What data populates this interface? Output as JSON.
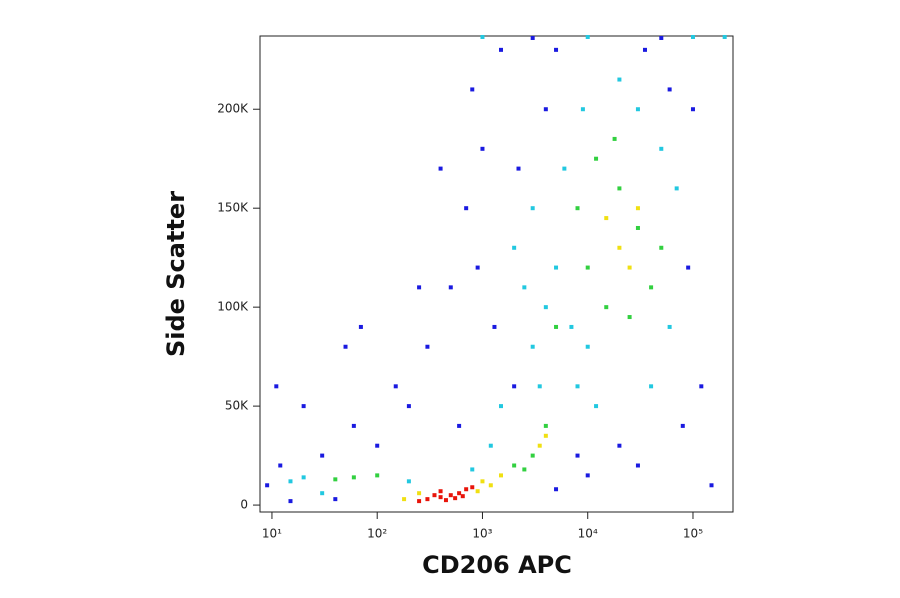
{
  "chart_data": {
    "type": "scatter",
    "x_label": "CD206 APC",
    "y_label": "Side Scatter",
    "xscale": "log",
    "xlim": [
      7.7,
      240000
    ],
    "ylim": [
      -3500,
      237000
    ],
    "xticks": [
      {
        "value": 10,
        "label": "10¹"
      },
      {
        "value": 100,
        "label": "10²"
      },
      {
        "value": 1000,
        "label": "10³"
      },
      {
        "value": 10000,
        "label": "10⁴"
      },
      {
        "value": 100000,
        "label": "10⁵"
      }
    ],
    "yticks": [
      0,
      {
        "value": 50000,
        "label": "50K"
      },
      {
        "value": 100000,
        "label": "100K"
      },
      {
        "value": 150000,
        "label": "150K"
      },
      {
        "value": 200000,
        "label": "200K"
      }
    ],
    "series": [
      {
        "color": "#1a1ae0",
        "x": [
          100,
          200,
          300,
          500,
          700,
          1000,
          800,
          400,
          150,
          60,
          30,
          12,
          9,
          20,
          50,
          1500,
          3000,
          50000,
          100000,
          120000,
          80000,
          30000,
          10000,
          5000,
          2000,
          600,
          1300,
          2200,
          4000,
          90000,
          20000,
          8000,
          150000,
          40,
          15,
          900,
          250,
          70,
          11,
          5000,
          60000,
          35000
        ],
        "y": [
          30000,
          50000,
          80000,
          110000,
          150000,
          180000,
          210000,
          170000,
          60000,
          40000,
          25000,
          20000,
          10000,
          50000,
          80000,
          230000,
          236000,
          236000,
          200000,
          60000,
          40000,
          20000,
          15000,
          8000,
          60000,
          40000,
          90000,
          170000,
          200000,
          120000,
          30000,
          25000,
          10000,
          3000,
          2000,
          120000,
          110000,
          90000,
          60000,
          230000,
          210000,
          230000
        ]
      },
      {
        "color": "#22c8e0",
        "x": [
          1500,
          3000,
          5000,
          6000,
          9000,
          2000,
          3000,
          60000,
          70000,
          50000,
          30000,
          20000,
          8000,
          1200,
          800,
          200,
          20,
          30,
          15,
          10000,
          40000,
          4000,
          2500,
          7000,
          12000,
          3500,
          1000,
          10000,
          100000,
          200000
        ],
        "y": [
          50000,
          80000,
          120000,
          170000,
          200000,
          130000,
          150000,
          90000,
          160000,
          180000,
          200000,
          215000,
          60000,
          30000,
          18000,
          12000,
          14000,
          6000,
          12000,
          80000,
          60000,
          100000,
          110000,
          90000,
          50000,
          60000,
          236500,
          236500,
          236500,
          236500
        ]
      },
      {
        "color": "#32d040",
        "x": [
          3000,
          4000,
          2000,
          15000,
          10000,
          30000,
          20000,
          8000,
          40000,
          12000,
          50000,
          100,
          60,
          40,
          2500,
          5000,
          25000,
          18000
        ],
        "y": [
          25000,
          40000,
          20000,
          100000,
          120000,
          140000,
          160000,
          150000,
          110000,
          175000,
          130000,
          15000,
          14000,
          13000,
          18000,
          90000,
          95000,
          185000
        ]
      },
      {
        "color": "#f0e012",
        "x": [
          1000,
          250,
          900,
          1500,
          3500,
          20000,
          15000,
          25000,
          180,
          1200,
          4000,
          30000
        ],
        "y": [
          12000,
          6000,
          7000,
          15000,
          30000,
          130000,
          145000,
          120000,
          3000,
          10000,
          35000,
          150000
        ]
      },
      {
        "color": "#e8140a",
        "x": [
          300,
          400,
          500,
          600,
          450,
          350,
          700,
          550,
          400,
          650,
          250,
          800
        ],
        "y": [
          3000,
          4000,
          5000,
          6000,
          2500,
          5000,
          8000,
          3500,
          7000,
          4500,
          2000,
          9000
        ]
      }
    ]
  }
}
